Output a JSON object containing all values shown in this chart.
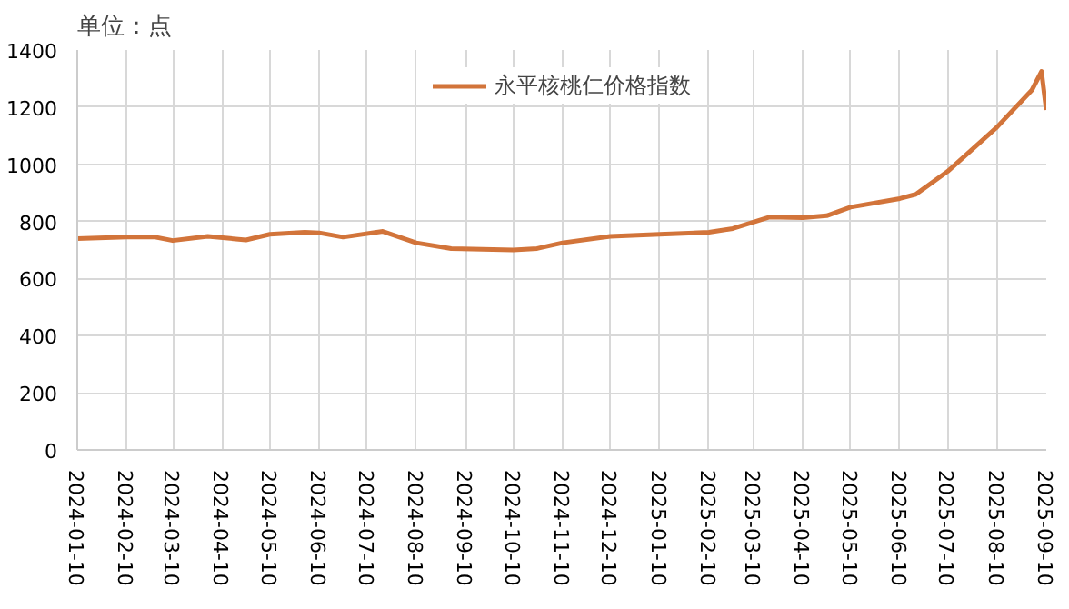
{
  "chart_data": {
    "type": "line",
    "ylabel": "单位：点",
    "legend": "top",
    "x": [
      "2024-01-10",
      "2024-02-10",
      "2024-02-28",
      "2024-03-10",
      "2024-04-01",
      "2024-04-25",
      "2024-05-10",
      "2024-06-01",
      "2024-06-10",
      "2024-06-25",
      "2024-07-20",
      "2024-08-10",
      "2024-09-01",
      "2024-10-10",
      "2024-10-25",
      "2024-11-10",
      "2024-12-10",
      "2025-01-10",
      "2025-02-10",
      "2025-02-25",
      "2025-03-20",
      "2025-04-10",
      "2025-04-25",
      "2025-05-10",
      "2025-06-10",
      "2025-06-20",
      "2025-07-10",
      "2025-08-10",
      "2025-09-01",
      "2025-09-07",
      "2025-09-10"
    ],
    "series": [
      {
        "name": "永平核桃仁价格指数",
        "color": "#d2743a",
        "values": [
          740,
          745,
          745,
          733,
          748,
          735,
          755,
          762,
          760,
          745,
          765,
          725,
          705,
          700,
          705,
          725,
          748,
          755,
          762,
          775,
          815,
          813,
          820,
          850,
          880,
          895,
          975,
          1130,
          1260,
          1325,
          1190
        ]
      }
    ],
    "xlim": [
      "2024-01-10",
      "2025-09-10"
    ],
    "xticks": [
      "2024-01-10",
      "2024-02-10",
      "2024-03-10",
      "2024-04-10",
      "2024-05-10",
      "2024-06-10",
      "2024-07-10",
      "2024-08-10",
      "2024-09-10",
      "2024-10-10",
      "2024-11-10",
      "2024-12-10",
      "2025-01-10",
      "2025-02-10",
      "2025-03-10",
      "2025-04-10",
      "2025-05-10",
      "2025-06-10",
      "2025-07-10",
      "2025-08-10",
      "2025-09-10"
    ],
    "ylim": [
      0,
      1400
    ],
    "yticks": [
      0,
      200,
      400,
      600,
      800,
      1000,
      1200,
      1400
    ],
    "grid": true,
    "marker": "none",
    "line_style": "solid"
  }
}
